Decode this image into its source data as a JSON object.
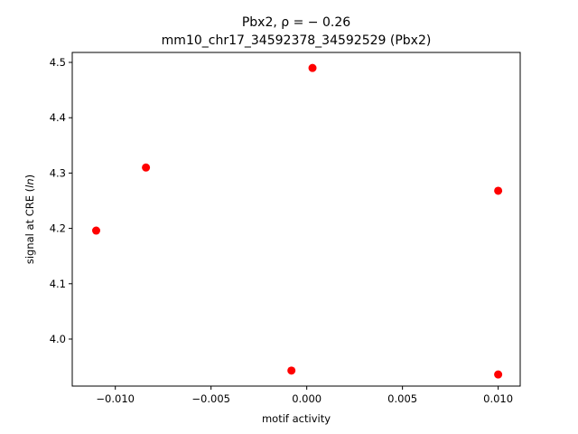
{
  "chart_data": {
    "type": "scatter",
    "title_line1": "Pbx2, ρ = − 0.26",
    "title_line2": "mm10_chr17_34592378_34592529 (Pbx2)",
    "xlabel": "motif activity",
    "ylabel_prefix": "signal at CRE (",
    "ylabel_italic": "ln",
    "ylabel_suffix": ")",
    "xlim": [
      -0.01225,
      0.01115
    ],
    "ylim": [
      3.915,
      4.518
    ],
    "x_ticks": [
      -0.01,
      -0.005,
      0.0,
      0.005,
      0.01
    ],
    "x_tick_labels": [
      "−0.010",
      "−0.005",
      "0.000",
      "0.005",
      "0.010"
    ],
    "y_ticks": [
      4.0,
      4.1,
      4.2,
      4.3,
      4.4,
      4.5
    ],
    "y_tick_labels": [
      "4.0",
      "4.1",
      "4.2",
      "4.3",
      "4.4",
      "4.5"
    ],
    "marker_color": "#ff0000",
    "grid": false,
    "points": [
      {
        "x": -0.011,
        "y": 4.196
      },
      {
        "x": -0.0084,
        "y": 4.31
      },
      {
        "x": -0.0008,
        "y": 3.943
      },
      {
        "x": 0.0003,
        "y": 4.49
      },
      {
        "x": 0.01,
        "y": 4.268
      },
      {
        "x": 0.01,
        "y": 3.936
      }
    ]
  }
}
